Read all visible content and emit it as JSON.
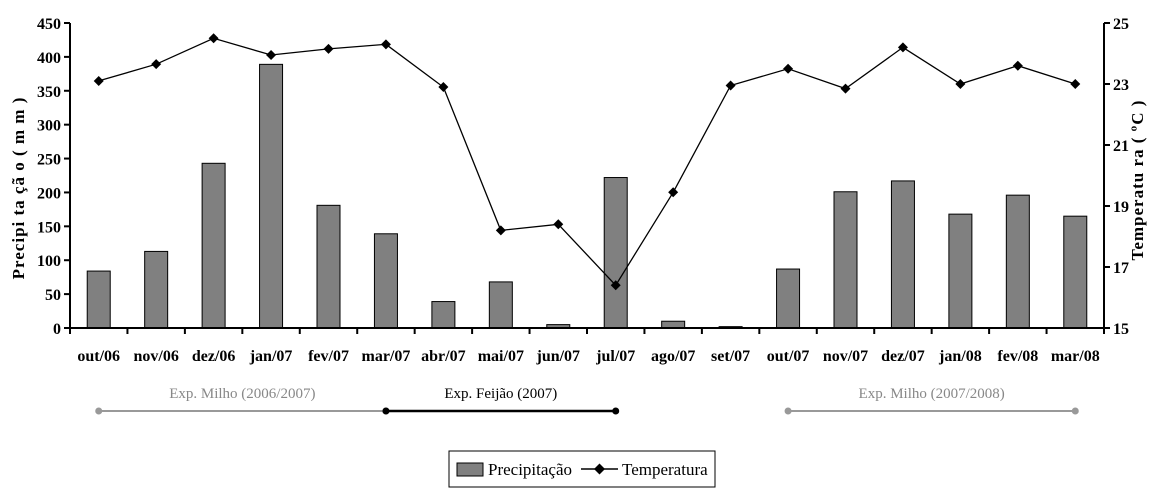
{
  "chart_data": {
    "type": "bar",
    "categories": [
      "out/06",
      "nov/06",
      "dez/06",
      "jan/07",
      "fev/07",
      "mar/07",
      "abr/07",
      "mai/07",
      "jun/07",
      "jul/07",
      "ago/07",
      "set/07",
      "out/07",
      "nov/07",
      "dez/07",
      "jan/08",
      "fev/08",
      "mar/08"
    ],
    "series": [
      {
        "name": "Precipitação",
        "kind": "bar",
        "axis": "left",
        "color": "#808080",
        "values": [
          84,
          113,
          243,
          389,
          181,
          139,
          39,
          68,
          5,
          222,
          10,
          2,
          87,
          201,
          217,
          168,
          196,
          165
        ]
      },
      {
        "name": "Temperatura",
        "kind": "line",
        "axis": "right",
        "color": "#000000",
        "marker": "diamond",
        "values": [
          23.1,
          23.65,
          24.5,
          23.95,
          24.15,
          24.3,
          22.9,
          18.2,
          18.4,
          16.4,
          19.45,
          22.95,
          23.5,
          22.85,
          24.2,
          23.0,
          23.6,
          23.0
        ]
      }
    ],
    "ylabel": "Precipitação (mm)",
    "ylabel_display": "Precipi ta çã o ( m m )",
    "y2label": "Temperatura (°C)",
    "y2label_display": "Temperatu ra ( ºC )",
    "ylim": [
      0,
      450
    ],
    "yticks": [
      0,
      50,
      100,
      150,
      200,
      250,
      300,
      350,
      400,
      450
    ],
    "y2lim": [
      15,
      25
    ],
    "y2ticks": [
      15,
      17,
      19,
      21,
      23,
      25
    ],
    "grid": false,
    "legend_position": "bottom-center",
    "periods": [
      {
        "label": "Exp. Milho (2006/2007)",
        "start": "out/06",
        "end": "mar/07",
        "color": "#999999"
      },
      {
        "label": "Exp. Feijão (2007)",
        "start": "mar/07",
        "end": "jul/07",
        "color": "#000000"
      },
      {
        "label": "Exp. Milho (2007/2008)",
        "start": "out/07",
        "end": "mar/08",
        "color": "#999999"
      }
    ]
  }
}
